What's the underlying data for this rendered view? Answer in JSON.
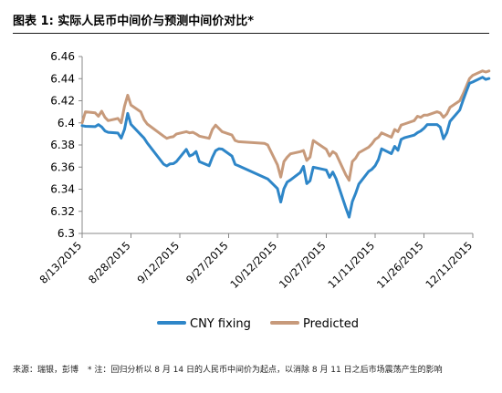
{
  "figure": {
    "title": "图表 1: 实际人民币中间价与预测中间价对比*",
    "source": "来源：瑞银，彭博",
    "note": "* 注：回归分析以 8 月 14 日的人民币中间价为起点，以消除 8 月 11 日之后市场震荡产生的影响"
  },
  "chart_data": {
    "type": "line",
    "title": "",
    "xlabel": "",
    "ylabel": "",
    "ylim": [
      6.3,
      6.46
    ],
    "yticks": [
      "6.3",
      "6.32",
      "6.34",
      "6.36",
      "6.38",
      "6.4",
      "6.42",
      "6.44",
      "6.46"
    ],
    "xticks": [
      "8/13/2015",
      "8/28/2015",
      "9/12/2015",
      "9/27/2015",
      "10/12/2015",
      "10/27/2015",
      "11/11/2015",
      "11/26/2015",
      "12/11/2015"
    ],
    "grid": false,
    "legend_position": "bottom",
    "colors": {
      "CNY fixing": "#2e86c8",
      "Predicted": "#c79a7b"
    },
    "series": [
      {
        "name": "CNY fixing",
        "x": [
          "2015-08-13",
          "2015-08-14",
          "2015-08-17",
          "2015-08-18",
          "2015-08-19",
          "2015-08-20",
          "2015-08-21",
          "2015-08-24",
          "2015-08-25",
          "2015-08-26",
          "2015-08-27",
          "2015-08-28",
          "2015-08-31",
          "2015-09-01",
          "2015-09-02",
          "2015-09-07",
          "2015-09-08",
          "2015-09-09",
          "2015-09-10",
          "2015-09-11",
          "2015-09-14",
          "2015-09-15",
          "2015-09-16",
          "2015-09-17",
          "2015-09-18",
          "2015-09-21",
          "2015-09-22",
          "2015-09-23",
          "2015-09-24",
          "2015-09-25",
          "2015-09-28",
          "2015-09-29",
          "2015-09-30",
          "2015-10-08",
          "2015-10-09",
          "2015-10-12",
          "2015-10-13",
          "2015-10-14",
          "2015-10-15",
          "2015-10-16",
          "2015-10-19",
          "2015-10-20",
          "2015-10-21",
          "2015-10-22",
          "2015-10-23",
          "2015-10-26",
          "2015-10-27",
          "2015-10-28",
          "2015-10-29",
          "2015-10-30",
          "2015-11-02",
          "2015-11-03",
          "2015-11-04",
          "2015-11-05",
          "2015-11-06",
          "2015-11-09",
          "2015-11-10",
          "2015-11-11",
          "2015-11-12",
          "2015-11-13",
          "2015-11-16",
          "2015-11-17",
          "2015-11-18",
          "2015-11-19",
          "2015-11-20",
          "2015-11-23",
          "2015-11-24",
          "2015-11-25",
          "2015-11-26",
          "2015-11-27",
          "2015-11-30",
          "2015-12-01",
          "2015-12-02",
          "2015-12-03",
          "2015-12-04",
          "2015-12-07",
          "2015-12-08",
          "2015-12-09",
          "2015-12-10",
          "2015-12-11",
          "2015-12-14",
          "2015-12-15",
          "2015-12-16"
        ],
        "values": [
          6.3975,
          6.3969,
          6.3966,
          6.3985,
          6.3963,
          6.3927,
          6.3915,
          6.3908,
          6.3862,
          6.3941,
          6.4085,
          6.3986,
          6.3893,
          6.3863,
          6.3818,
          6.3627,
          6.361,
          6.3629,
          6.3631,
          6.3651,
          6.376,
          6.37,
          6.3713,
          6.3741,
          6.365,
          6.3612,
          6.3689,
          6.3748,
          6.3766,
          6.3763,
          6.37,
          6.3625,
          6.3613,
          6.3506,
          6.3493,
          6.3406,
          6.3284,
          6.3405,
          6.3465,
          6.3484,
          6.3551,
          6.3607,
          6.345,
          6.3477,
          6.3599,
          6.358,
          6.3573,
          6.3507,
          6.3555,
          6.3495,
          6.3231,
          6.3148,
          6.3288,
          6.3361,
          6.3447,
          6.3561,
          6.358,
          6.3612,
          6.3668,
          6.3765,
          6.3722,
          6.3788,
          6.3752,
          6.3851,
          6.3865,
          6.3889,
          6.3911,
          6.3926,
          6.3951,
          6.3985,
          6.3985,
          6.3962,
          6.3856,
          6.391,
          6.4014,
          6.4116,
          6.4203,
          6.4283,
          6.4358,
          6.437,
          6.4413,
          6.4393,
          6.4401
        ]
      },
      {
        "name": "Predicted",
        "x": [
          "2015-08-13",
          "2015-08-14",
          "2015-08-17",
          "2015-08-18",
          "2015-08-19",
          "2015-08-20",
          "2015-08-21",
          "2015-08-24",
          "2015-08-25",
          "2015-08-26",
          "2015-08-27",
          "2015-08-28",
          "2015-08-31",
          "2015-09-01",
          "2015-09-02",
          "2015-09-07",
          "2015-09-08",
          "2015-09-09",
          "2015-09-10",
          "2015-09-11",
          "2015-09-14",
          "2015-09-15",
          "2015-09-16",
          "2015-09-17",
          "2015-09-18",
          "2015-09-21",
          "2015-09-22",
          "2015-09-23",
          "2015-09-24",
          "2015-09-25",
          "2015-09-28",
          "2015-09-29",
          "2015-09-30",
          "2015-10-08",
          "2015-10-09",
          "2015-10-12",
          "2015-10-13",
          "2015-10-14",
          "2015-10-15",
          "2015-10-16",
          "2015-10-19",
          "2015-10-20",
          "2015-10-21",
          "2015-10-22",
          "2015-10-23",
          "2015-10-26",
          "2015-10-27",
          "2015-10-28",
          "2015-10-29",
          "2015-10-30",
          "2015-11-02",
          "2015-11-03",
          "2015-11-04",
          "2015-11-05",
          "2015-11-06",
          "2015-11-09",
          "2015-11-10",
          "2015-11-11",
          "2015-11-12",
          "2015-11-13",
          "2015-11-16",
          "2015-11-17",
          "2015-11-18",
          "2015-11-19",
          "2015-11-20",
          "2015-11-23",
          "2015-11-24",
          "2015-11-25",
          "2015-11-26",
          "2015-11-27",
          "2015-11-30",
          "2015-12-01",
          "2015-12-02",
          "2015-12-03",
          "2015-12-04",
          "2015-12-07",
          "2015-12-08",
          "2015-12-09",
          "2015-12-10",
          "2015-12-11",
          "2015-12-14",
          "2015-12-15",
          "2015-12-16"
        ],
        "values": [
          6.4,
          6.41,
          6.409,
          6.406,
          6.4105,
          6.405,
          6.402,
          6.404,
          6.4,
          6.415,
          6.425,
          6.416,
          6.41,
          6.403,
          6.399,
          6.388,
          6.386,
          6.387,
          6.3875,
          6.39,
          6.392,
          6.391,
          6.3915,
          6.39,
          6.388,
          6.386,
          6.394,
          6.398,
          6.395,
          6.392,
          6.389,
          6.384,
          6.383,
          6.3815,
          6.38,
          6.362,
          6.351,
          6.365,
          6.369,
          6.372,
          6.374,
          6.375,
          6.366,
          6.369,
          6.384,
          6.378,
          6.376,
          6.37,
          6.374,
          6.372,
          6.353,
          6.348,
          6.365,
          6.368,
          6.373,
          6.378,
          6.381,
          6.385,
          6.387,
          6.391,
          6.387,
          6.394,
          6.392,
          6.398,
          6.399,
          6.402,
          6.406,
          6.405,
          6.407,
          6.407,
          6.41,
          6.409,
          6.405,
          6.408,
          6.414,
          6.42,
          6.426,
          6.433,
          6.44,
          6.443,
          6.447,
          6.446,
          6.447
        ]
      }
    ]
  }
}
